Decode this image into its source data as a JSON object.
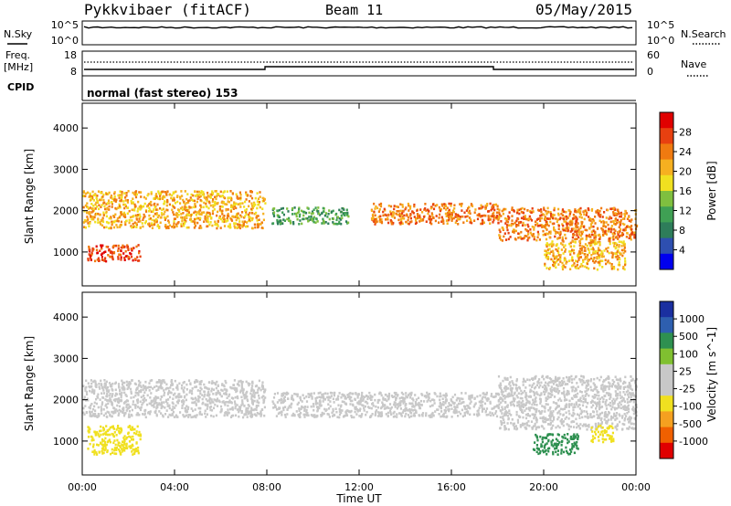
{
  "header": {
    "station": "Pykkvibaer (fitACF)",
    "beam": "Beam 11",
    "date": "05/May/2015"
  },
  "strip_labels": {
    "nsky": "N.Sky",
    "nsky_hi": "10^5",
    "nsky_lo": "10^0",
    "nsearch": "N.Search",
    "nsearch_hi": "10^5",
    "nsearch_lo": "10^0",
    "freq": "Freq.",
    "freq_unit": "[MHz]",
    "freq_hi": "18",
    "freq_lo": "8",
    "nave": "Nave",
    "nave_hi": "60",
    "nave_lo": "0",
    "cpid": "CPID",
    "mode": "normal (fast stereo) 153"
  },
  "x_axis": {
    "label": "Time UT",
    "ticks": [
      "00:00",
      "04:00",
      "08:00",
      "12:00",
      "16:00",
      "20:00",
      "00:00"
    ]
  },
  "colors": {
    "power": [
      "#0000ee",
      "#2e4fb0",
      "#2e7d5a",
      "#3fa054",
      "#7fbf3f",
      "#f0e020",
      "#f6b020",
      "#f07a10",
      "#e84010",
      "#e00000"
    ],
    "velocity": [
      "#e00000",
      "#f06000",
      "#f5a020",
      "#f0e020",
      "#c8c8c8",
      "#c8c8c8",
      "#80c030",
      "#2e9050",
      "#2e5faf",
      "#1a2fa0"
    ]
  },
  "chart_data": [
    {
      "type": "heatmap",
      "title": "Power",
      "ylabel": "Slant Range [km]",
      "xlabel": "",
      "ylim": [
        180,
        4600
      ],
      "yticks": [
        "1000",
        "2000",
        "3000",
        "4000"
      ],
      "colorbar": {
        "label": "Power [dB]",
        "range": [
          0,
          32
        ],
        "ticks": [
          "4",
          "8",
          "12",
          "16",
          "20",
          "24",
          "28"
        ]
      },
      "bands": [
        {
          "t_start": 0.0,
          "t_end": 7.9,
          "range_start": 1600,
          "range_end": 2500,
          "level": 22
        },
        {
          "t_start": 0.2,
          "t_end": 2.5,
          "range_start": 800,
          "range_end": 1200,
          "level": 28
        },
        {
          "t_start": 8.2,
          "t_end": 11.5,
          "range_start": 1700,
          "range_end": 2100,
          "level": 14
        },
        {
          "t_start": 12.5,
          "t_end": 18.0,
          "range_start": 1700,
          "range_end": 2200,
          "level": 26
        },
        {
          "t_start": 18.0,
          "t_end": 24.0,
          "range_start": 1300,
          "range_end": 2100,
          "level": 24
        },
        {
          "t_start": 20.0,
          "t_end": 23.5,
          "range_start": 600,
          "range_end": 1300,
          "level": 22
        }
      ]
    },
    {
      "type": "heatmap",
      "title": "Velocity",
      "ylabel": "Slant Range [km]",
      "xlabel": "Time UT",
      "ylim": [
        180,
        4600
      ],
      "yticks": [
        "1000",
        "2000",
        "3000",
        "4000"
      ],
      "colorbar": {
        "label": "Velocity [m s^-1]",
        "range": [
          -1200,
          1200
        ],
        "ticks": [
          "1000",
          "500",
          "100",
          "25",
          "-25",
          "-100",
          "-500",
          "-1000"
        ]
      },
      "bands": [
        {
          "t_start": 0.0,
          "t_end": 7.9,
          "range_start": 1600,
          "range_end": 2500,
          "level": 0
        },
        {
          "t_start": 0.2,
          "t_end": 2.5,
          "range_start": 700,
          "range_end": 1400,
          "level": -300
        },
        {
          "t_start": 8.2,
          "t_end": 18.0,
          "range_start": 1600,
          "range_end": 2200,
          "level": 0
        },
        {
          "t_start": 18.0,
          "t_end": 24.0,
          "range_start": 1300,
          "range_end": 2600,
          "level": 0
        },
        {
          "t_start": 19.5,
          "t_end": 21.5,
          "range_start": 700,
          "range_end": 1200,
          "level": 700
        },
        {
          "t_start": 22.0,
          "t_end": 23.0,
          "range_start": 1000,
          "range_end": 1400,
          "level": -300
        }
      ]
    }
  ]
}
